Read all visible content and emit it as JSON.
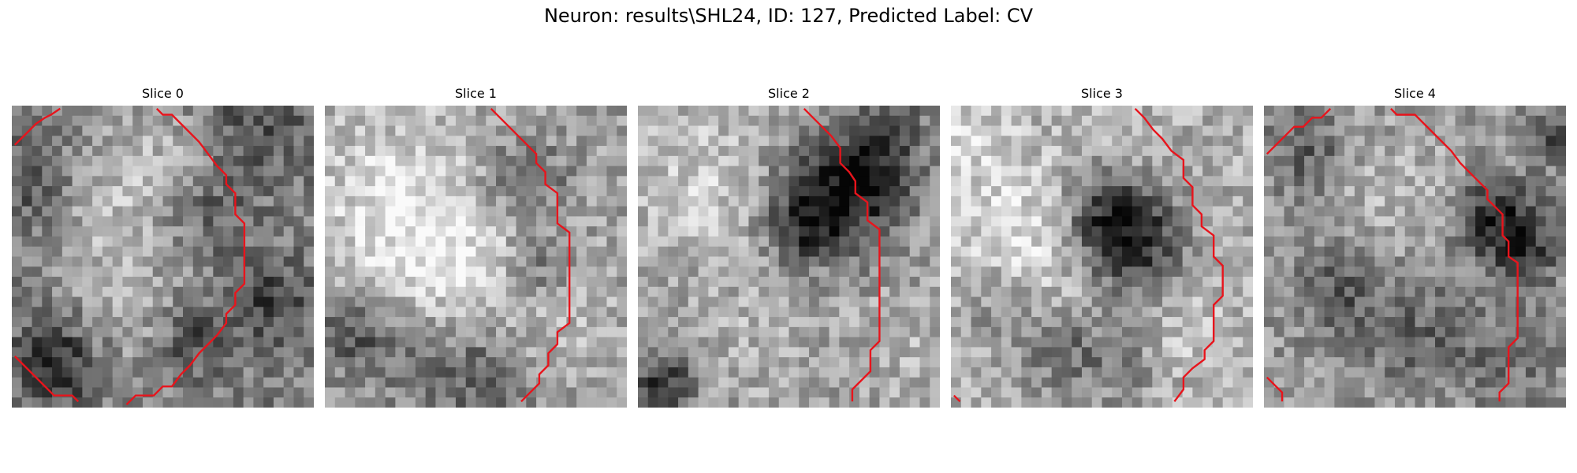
{
  "figure": {
    "title": "Neuron: results\\SHL24, ID: 127, Predicted Label: CV"
  },
  "colors": {
    "contour": "#e8141c",
    "background": "#ffffff"
  },
  "slices": [
    {
      "title": "Slice 0"
    },
    {
      "title": "Slice 1"
    },
    {
      "title": "Slice 2"
    },
    {
      "title": "Slice 3"
    },
    {
      "title": "Slice 4"
    }
  ]
}
